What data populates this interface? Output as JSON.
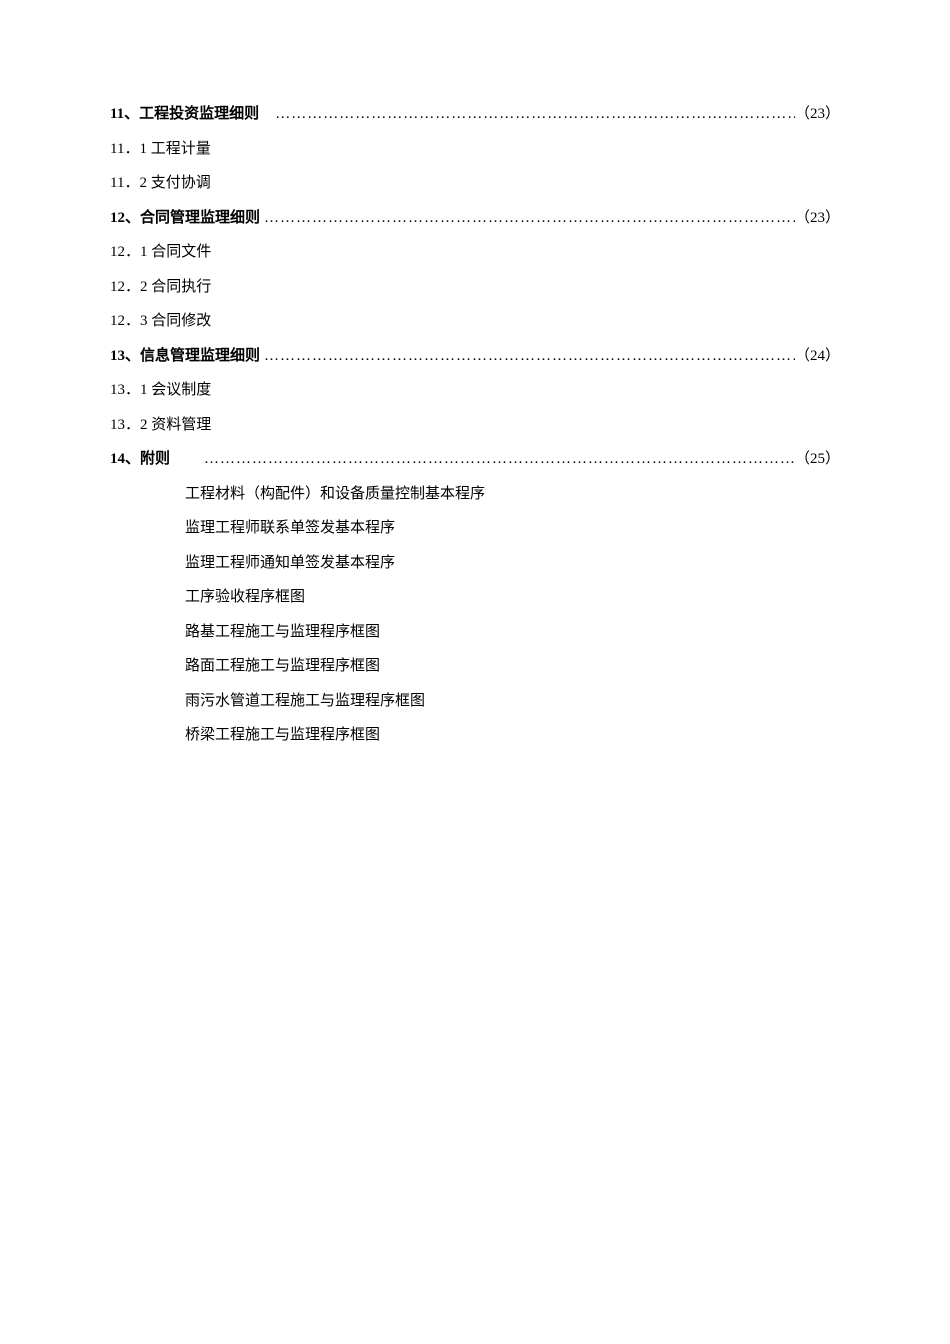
{
  "sections": [
    {
      "key": "s11",
      "heading": "11、工程投资监理细则",
      "page": "（23）",
      "subs": [
        {
          "key": "s11_1",
          "text": "11．1 工程计量"
        },
        {
          "key": "s11_2",
          "text": "11．2 支付协调"
        }
      ]
    },
    {
      "key": "s12",
      "heading": "12、合同管理监理细则",
      "page": "（23）",
      "subs": [
        {
          "key": "s12_1",
          "text": "12．1 合同文件"
        },
        {
          "key": "s12_2",
          "text": "12．2 合同执行"
        },
        {
          "key": "s12_3",
          "text": "12．3 合同修改"
        }
      ]
    },
    {
      "key": "s13",
      "heading": "13、信息管理监理细则",
      "page": "（24）",
      "subs": [
        {
          "key": "s13_1",
          "text": "13．1 会议制度"
        },
        {
          "key": "s13_2",
          "text": "13．2 资料管理"
        }
      ]
    },
    {
      "key": "s14",
      "heading": "14、附则",
      "page": "（25）",
      "appendix": [
        {
          "key": "a1",
          "text": "工程材料（构配件）和设备质量控制基本程序"
        },
        {
          "key": "a2",
          "text": "监理工程师联系单签发基本程序"
        },
        {
          "key": "a3",
          "text": "监理工程师通知单签发基本程序"
        },
        {
          "key": "a4",
          "text": "工序验收程序框图"
        },
        {
          "key": "a5",
          "text": "路基工程施工与监理程序框图"
        },
        {
          "key": "a6",
          "text": "路面工程施工与监理程序框图"
        },
        {
          "key": "a7",
          "text": "雨污水管道工程施工与监理程序框图"
        },
        {
          "key": "a8",
          "text": "桥梁工程施工与监理程序框图"
        }
      ]
    }
  ]
}
